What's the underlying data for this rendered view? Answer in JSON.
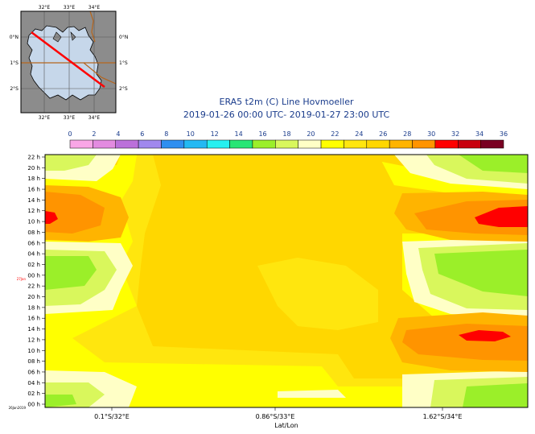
{
  "title": {
    "line1": "ERA5 t2m (C) Line Hovmoeller",
    "line2": "2019-01-26 00:00 UTC- 2019-01-27 23:00 UTC"
  },
  "map_inset": {
    "lon_labels": [
      "32°E",
      "33°E",
      "34°E"
    ],
    "lat_labels": [
      "0°N",
      "1°S",
      "2°S"
    ],
    "colors": {
      "land": "#8c8c8c",
      "water": "#c6d7ea",
      "section_line": "#ff0000",
      "border": "#b5651d"
    }
  },
  "colorbar": {
    "levels": [
      "0",
      "2",
      "4",
      "6",
      "8",
      "10",
      "12",
      "14",
      "16",
      "18",
      "20",
      "22",
      "24",
      "26",
      "28",
      "30",
      "32",
      "34",
      "36"
    ],
    "colors": [
      "#f9a6e6",
      "#e38be0",
      "#bb70da",
      "#a088ee",
      "#2f8ff0",
      "#23b9f3",
      "#26f0f0",
      "#27e675",
      "#9bef29",
      "#d9f75c",
      "#ffffc6",
      "#ffff00",
      "#ffe60e",
      "#ffd700",
      "#ffb400",
      "#ff9400",
      "#ff0000",
      "#c8000e",
      "#790022"
    ]
  },
  "chart_data": {
    "type": "heatmap",
    "title": "ERA5 t2m (C) Line Hovmoeller",
    "subtitle": "2019-01-26 00:00 UTC- 2019-01-27 23:00 UTC",
    "xlabel": "Lat/Lon",
    "ylabel": "",
    "x_ticks": [
      "0.1°S/32°E",
      "0.86°S/33°E",
      "1.62°S/34°E"
    ],
    "y_ticks": [
      "00 h",
      "02 h",
      "04 h",
      "06 h",
      "08 h",
      "10 h",
      "12 h",
      "14 h",
      "16 h",
      "18 h",
      "20 h",
      "22 h",
      "00 h",
      "02 h",
      "04 h",
      "06 h",
      "08 h",
      "10 h",
      "12 h",
      "14 h",
      "16 h",
      "18 h",
      "20 h",
      "22 h"
    ],
    "y_date_labels": [
      "26Jan2019",
      "27Jan"
    ],
    "colorbar_levels": [
      0,
      2,
      4,
      6,
      8,
      10,
      12,
      14,
      16,
      18,
      20,
      22,
      24,
      26,
      28,
      30,
      32,
      34,
      36
    ],
    "x_range": [
      "0.1°S/32°E",
      "2.4°S/34.6°E"
    ],
    "y_range": [
      "2019-01-26 00:00",
      "2019-01-27 23:00"
    ],
    "legend_position": "top"
  }
}
